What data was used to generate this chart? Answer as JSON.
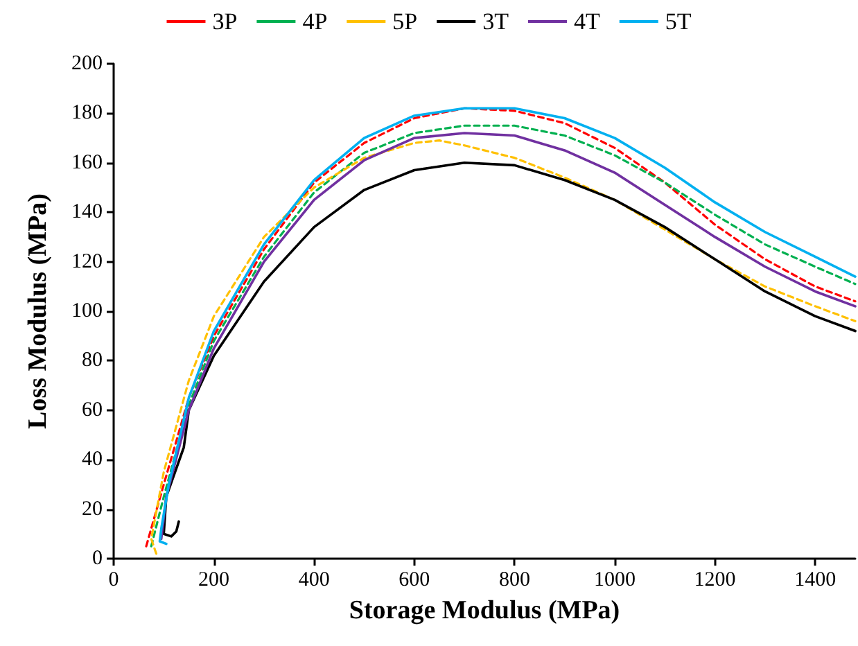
{
  "chart_data": {
    "type": "line",
    "xlabel": "Storage Modulus (MPa)",
    "ylabel": "Loss Modulus (MPa)",
    "xlim": [
      0,
      1480
    ],
    "ylim": [
      0,
      200
    ],
    "xticks": [
      0,
      200,
      400,
      600,
      800,
      1000,
      1200,
      1400
    ],
    "yticks": [
      0,
      20,
      40,
      60,
      80,
      100,
      120,
      140,
      160,
      180,
      200
    ],
    "grid": false,
    "legend": "top",
    "marker": "none",
    "series": [
      {
        "name": "3P",
        "color": "#ff0000",
        "line_style": "dashed",
        "x": [
          65,
          100,
          150,
          200,
          300,
          400,
          500,
          600,
          700,
          800,
          900,
          1000,
          1100,
          1200,
          1300,
          1400,
          1480
        ],
        "values": [
          5,
          30,
          65,
          90,
          125,
          152,
          168,
          178,
          182,
          181,
          176,
          166,
          152,
          135,
          121,
          110,
          104
        ]
      },
      {
        "name": "4P",
        "color": "#00b050",
        "line_style": "dashed",
        "x": [
          75,
          100,
          150,
          200,
          300,
          400,
          500,
          600,
          700,
          800,
          900,
          1000,
          1100,
          1200,
          1300,
          1400,
          1480
        ],
        "values": [
          5,
          25,
          62,
          88,
          122,
          148,
          164,
          172,
          175,
          175,
          171,
          163,
          152,
          139,
          127,
          118,
          111
        ]
      },
      {
        "name": "5P",
        "color": "#ffc000",
        "line_style": "dashed",
        "x": [
          85,
          75,
          100,
          150,
          200,
          300,
          400,
          500,
          600,
          650,
          700,
          800,
          900,
          1000,
          1100,
          1200,
          1300,
          1400,
          1480
        ],
        "values": [
          2,
          8,
          35,
          72,
          98,
          130,
          150,
          162,
          168,
          169,
          167,
          162,
          154,
          145,
          133,
          121,
          110,
          102,
          96
        ]
      },
      {
        "name": "3T",
        "color": "#000000",
        "line_style": "solid",
        "x": [
          130,
          125,
          115,
          100,
          105,
          140,
          150,
          200,
          300,
          400,
          500,
          600,
          700,
          800,
          900,
          1000,
          1100,
          1200,
          1300,
          1400,
          1480
        ],
        "values": [
          15,
          11,
          9,
          10,
          25,
          45,
          60,
          82,
          112,
          134,
          149,
          157,
          160,
          159,
          153,
          145,
          134,
          121,
          108,
          98,
          92
        ]
      },
      {
        "name": "4T",
        "color": "#7030a0",
        "line_style": "solid",
        "x": [
          95,
          105,
          150,
          200,
          300,
          400,
          500,
          600,
          700,
          800,
          900,
          1000,
          1100,
          1200,
          1300,
          1400,
          1480
        ],
        "values": [
          8,
          25,
          60,
          85,
          120,
          145,
          161,
          170,
          172,
          171,
          165,
          156,
          143,
          130,
          118,
          108,
          102
        ]
      },
      {
        "name": "5T",
        "color": "#00b0f0",
        "line_style": "solid",
        "x": [
          105,
          92,
          95,
          110,
          150,
          200,
          300,
          400,
          500,
          600,
          700,
          800,
          900,
          1000,
          1100,
          1200,
          1300,
          1400,
          1480
        ],
        "values": [
          6,
          7,
          12,
          30,
          65,
          92,
          127,
          153,
          170,
          179,
          182,
          182,
          178,
          170,
          158,
          144,
          132,
          122,
          114
        ]
      }
    ]
  }
}
